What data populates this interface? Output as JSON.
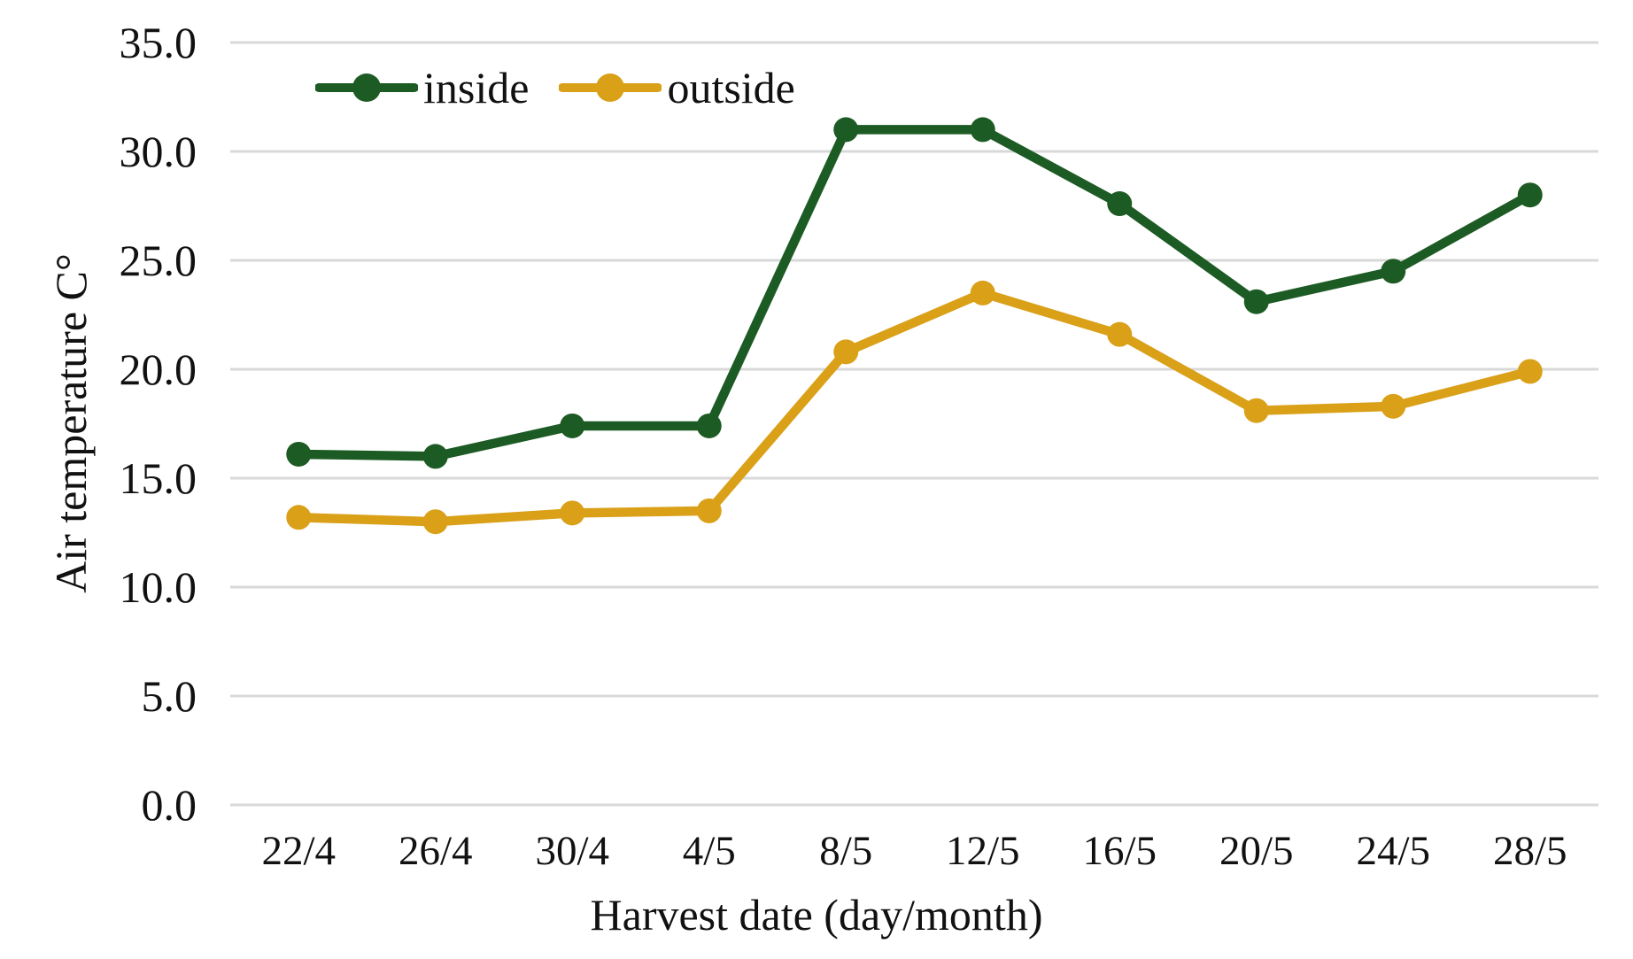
{
  "chart_data": {
    "type": "line",
    "title": "",
    "xlabel": "Harvest date (day/month)",
    "ylabel": "Air temperature C°",
    "categories": [
      "22/4",
      "26/4",
      "30/4",
      "4/5",
      "8/5",
      "12/5",
      "16/5",
      "20/5",
      "24/5",
      "28/5"
    ],
    "series": [
      {
        "name": "inside",
        "color": "#1d5b24",
        "values": [
          16.1,
          16.0,
          17.4,
          17.4,
          31.0,
          31.0,
          27.6,
          23.1,
          24.5,
          28.0
        ]
      },
      {
        "name": "outside",
        "color": "#d9a018",
        "values": [
          13.2,
          13.0,
          13.4,
          13.5,
          20.8,
          23.5,
          21.6,
          18.1,
          18.3,
          19.9
        ]
      }
    ],
    "ylim": [
      0,
      35
    ],
    "yticks": [
      35,
      30,
      25,
      20,
      15,
      10,
      5,
      0
    ],
    "ytick_labels": [
      "35.0",
      "30.0",
      "25.0",
      "20.0",
      "15.0",
      "10.0",
      "5.0",
      "0.0"
    ],
    "grid": "horizontal",
    "gridline_color": "#d9d9d9",
    "background_color": "#ffffff",
    "legend_position": "top-left-inside",
    "legend_labels": [
      "inside",
      "outside"
    ],
    "marker_shape": "circle"
  }
}
